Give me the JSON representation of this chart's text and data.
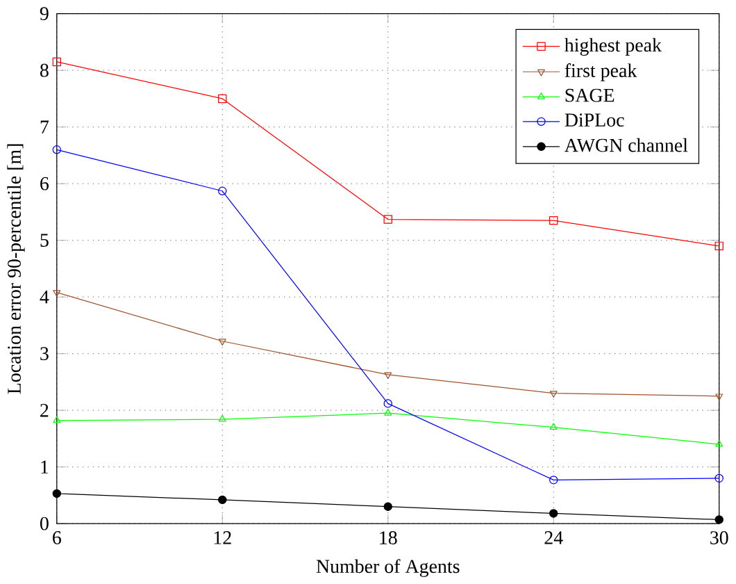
{
  "chart_data": {
    "type": "line",
    "xlabel": "Number of Agents",
    "ylabel": "Location error 90-percentile [m]",
    "x": [
      6,
      12,
      18,
      24,
      30
    ],
    "series": [
      {
        "name": "highest peak",
        "color": "#ff0000",
        "marker": "square",
        "values": [
          8.15,
          7.5,
          5.37,
          5.35,
          4.9
        ]
      },
      {
        "name": "first peak",
        "color": "#a0522d",
        "marker": "triangle down",
        "values": [
          4.08,
          3.22,
          2.63,
          2.3,
          2.25
        ]
      },
      {
        "name": "SAGE",
        "color": "#00ff00",
        "marker": "triangle",
        "values": [
          1.82,
          1.84,
          1.95,
          1.7,
          1.4
        ]
      },
      {
        "name": "DiPLoc",
        "color": "#0000ff",
        "marker": "circle",
        "values": [
          6.6,
          5.87,
          2.12,
          0.77,
          0.8
        ]
      },
      {
        "name": "AWGN channel",
        "color": "#000000",
        "marker": "dot",
        "values": [
          0.53,
          0.42,
          0.3,
          0.18,
          0.07
        ]
      }
    ],
    "xlim": [
      6,
      30
    ],
    "xticks": [
      6,
      12,
      18,
      24,
      30
    ],
    "ylim": [
      0,
      9
    ],
    "yticks": [
      0,
      1,
      2,
      3,
      4,
      5,
      6,
      7,
      8,
      9
    ],
    "grid": true,
    "legend": "top right",
    "line_style": "solid"
  }
}
